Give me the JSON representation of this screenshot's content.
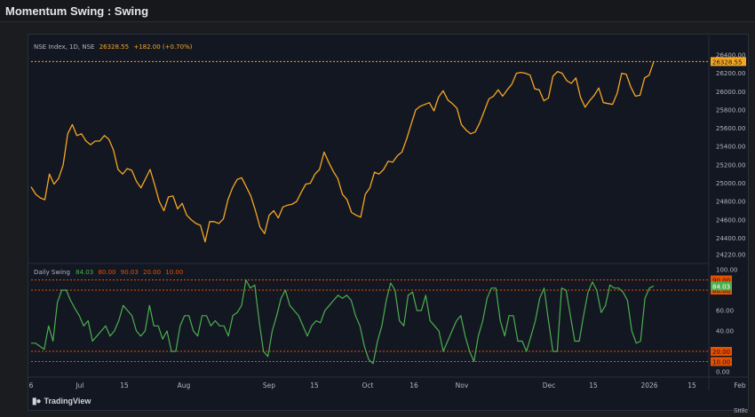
{
  "window": {
    "title": "Momentum Swing : Swing"
  },
  "footer": {
    "brand": "TradingView",
    "corner_label": "Stt8c"
  },
  "colors": {
    "price_line": "#f5a623",
    "oscillator_line": "#4caf50",
    "level_line": "#e65100",
    "background": "#131722"
  },
  "chart_data": [
    {
      "type": "line",
      "legend": {
        "symbol": "NSE Index, 1D, NSE",
        "last": "26328.55",
        "change": "+182.00 (+0.70%)"
      },
      "ylim": [
        24220,
        26400
      ],
      "yticks": [
        "26400.00",
        "26200.00",
        "26000.00",
        "25800.00",
        "25600.00",
        "25400.00",
        "25200.00",
        "25000.00",
        "24800.00",
        "24600.00",
        "24400.00",
        "24220.00"
      ],
      "last_value_badge": "26328.55",
      "series": [
        {
          "values": [
            24960,
            24880,
            24840,
            24820,
            25100,
            24990,
            25050,
            25200,
            25540,
            25640,
            25520,
            25540,
            25460,
            25420,
            25460,
            25460,
            25520,
            25480,
            25360,
            25150,
            25100,
            25160,
            25140,
            25020,
            24950,
            25050,
            25150,
            24980,
            24800,
            24700,
            24850,
            24860,
            24720,
            24780,
            24650,
            24600,
            24560,
            24540,
            24360,
            24580,
            24580,
            24560,
            24610,
            24820,
            24950,
            25040,
            25060,
            24960,
            24860,
            24700,
            24520,
            24450,
            24650,
            24700,
            24620,
            24740,
            24760,
            24770,
            24800,
            24900,
            24990,
            25000,
            25100,
            25150,
            25340,
            25230,
            25130,
            25050,
            24880,
            24820,
            24680,
            24650,
            24630,
            24880,
            24950,
            25120,
            25100,
            25150,
            25240,
            25230,
            25300,
            25340,
            25480,
            25640,
            25800,
            25840,
            25860,
            25880,
            25790,
            25940,
            26010,
            25910,
            25870,
            25820,
            25640,
            25580,
            25540,
            25560,
            25660,
            25790,
            25920,
            25950,
            26020,
            25950,
            26020,
            26080,
            26200,
            26210,
            26200,
            26180,
            26030,
            26020,
            25900,
            25930,
            26170,
            26220,
            26200,
            26120,
            26090,
            26150,
            25940,
            25830,
            25900,
            25960,
            26040,
            25880,
            25870,
            25860,
            25980,
            26200,
            26190,
            26050,
            25950,
            25960,
            26150,
            26180,
            26328.55
          ]
        }
      ],
      "x_ticks": [
        "6",
        "Jul",
        "15",
        "Aug",
        "Sep",
        "15",
        "Oct",
        "16",
        "Nov",
        "Dec",
        "15",
        "2026",
        "15",
        "Feb"
      ]
    },
    {
      "type": "line",
      "legend": {
        "name": "Daily Swing",
        "v1": "84.03",
        "v2": "80.00",
        "v3": "90.03",
        "v4": "20.00",
        "v5": "10.00"
      },
      "ylim": [
        0,
        100
      ],
      "yticks": [
        "100.00",
        "60.00",
        "40.00",
        "0.00"
      ],
      "levels": [
        90,
        80,
        20,
        10
      ],
      "level_badges": [
        "90.00",
        "80.00",
        "20.00",
        "10.00"
      ],
      "last_value_badge": "84.03",
      "series": [
        {
          "values": [
            28,
            28,
            25,
            22,
            45,
            30,
            68,
            80,
            80,
            70,
            62,
            55,
            45,
            50,
            30,
            35,
            40,
            45,
            35,
            40,
            50,
            65,
            60,
            55,
            40,
            35,
            40,
            65,
            45,
            45,
            32,
            40,
            20,
            20,
            45,
            55,
            55,
            40,
            35,
            55,
            55,
            45,
            50,
            45,
            45,
            35,
            55,
            58,
            65,
            90,
            82,
            85,
            50,
            20,
            15,
            40,
            55,
            72,
            80,
            65,
            60,
            55,
            45,
            35,
            45,
            50,
            48,
            60,
            65,
            70,
            75,
            72,
            75,
            70,
            55,
            45,
            25,
            12,
            8,
            30,
            45,
            70,
            87,
            80,
            50,
            45,
            75,
            78,
            60,
            60,
            75,
            50,
            45,
            40,
            20,
            30,
            40,
            50,
            55,
            35,
            20,
            10,
            35,
            50,
            72,
            82,
            82,
            50,
            35,
            55,
            55,
            30,
            30,
            20,
            35,
            50,
            72,
            82,
            50,
            20,
            20,
            82,
            80,
            55,
            30,
            30,
            55,
            78,
            88,
            80,
            58,
            65,
            85,
            82,
            82,
            78,
            70,
            40,
            28,
            30,
            72,
            82,
            84.03
          ]
        }
      ]
    }
  ]
}
